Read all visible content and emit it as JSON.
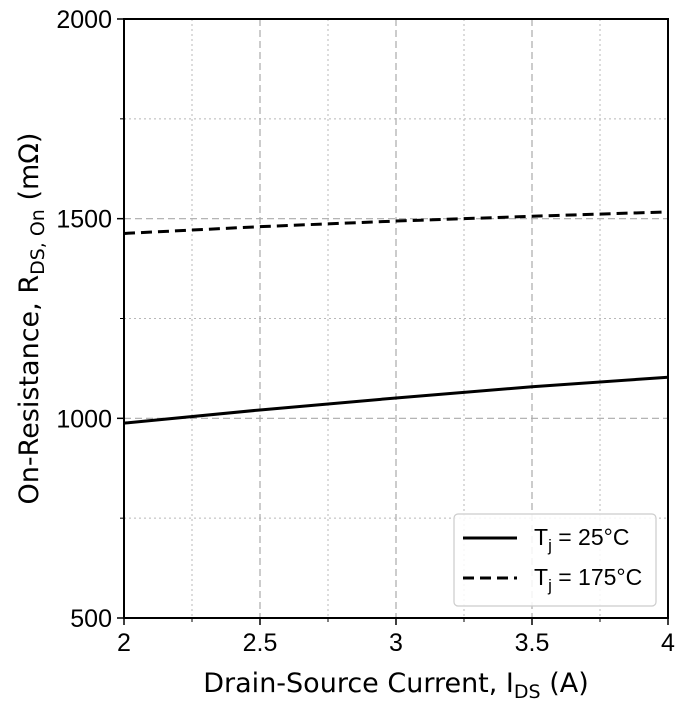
{
  "chart_data": {
    "type": "line",
    "xlabel": {
      "main": "Drain-Source Current, I",
      "sub": "DS",
      "tail": " (A)"
    },
    "ylabel": {
      "main": "On-Resistance, R",
      "sub": "DS, On",
      "tail": " (mΩ)"
    },
    "xlim": [
      2,
      4
    ],
    "ylim": [
      500,
      2000
    ],
    "x_ticks": [
      2,
      2.5,
      3,
      3.5,
      4
    ],
    "x_tick_labels": [
      "2",
      "2.5",
      "3",
      "3.5",
      "4"
    ],
    "y_ticks": [
      500,
      1000,
      1500,
      2000
    ],
    "y_tick_labels": [
      "500",
      "1000",
      "1500",
      "2000"
    ],
    "x_minor_ticks": [
      2.25,
      2.75,
      3.25,
      3.75
    ],
    "y_minor_ticks": [
      750,
      1250,
      1750
    ],
    "grid": true,
    "legend_position": "bottom-right",
    "series": [
      {
        "name": {
          "main": "T",
          "sub": "j",
          "tail": " = 25°C"
        },
        "style": "solid",
        "color": "#000000",
        "x": [
          2,
          2.5,
          3,
          3.5,
          4
        ],
        "y": [
          988,
          1021,
          1051,
          1079,
          1103
        ]
      },
      {
        "name": {
          "main": "T",
          "sub": "j",
          "tail": " = 175°C"
        },
        "style": "dashed",
        "color": "#000000",
        "x": [
          2,
          2.5,
          3,
          3.5,
          4
        ],
        "y": [
          1463,
          1480,
          1494,
          1506,
          1517
        ]
      }
    ]
  }
}
